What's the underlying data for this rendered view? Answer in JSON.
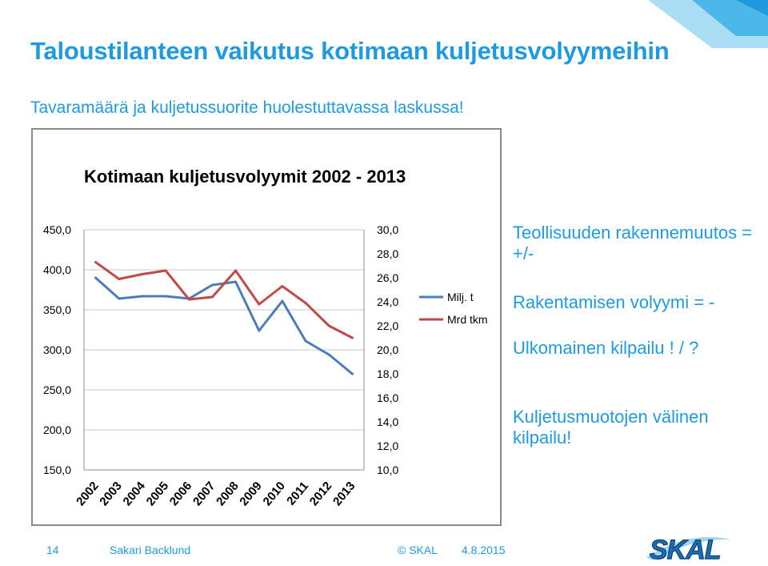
{
  "slide": {
    "title": "Taloustilanteen vaikutus kotimaan kuljetusvolyymeihin",
    "subtitle": "Tavaramäärä ja kuljetussuorite huolestuttavassa laskussa!",
    "accent_color": "#1e9be0"
  },
  "bullets": [
    "Teollisuuden rakennemuutos = +/-",
    "Rakentamisen volyymi = -",
    "Ulkomainen kilpailu ! / ?",
    "Kuljetusmuotojen välinen kilpailu!"
  ],
  "footer": {
    "page_number": "14",
    "author": "Sakari Backlund",
    "copyright": "© SKAL",
    "date": "4.8.2015"
  },
  "logo": {
    "text": "SKAL",
    "icon": "skal-logo"
  },
  "chart_data": {
    "type": "line",
    "title": "Kotimaan kuljetusvolyymit 2002 - 2013",
    "categories": [
      "2002",
      "2003",
      "2004",
      "2005",
      "2006",
      "2007",
      "2008",
      "2009",
      "2010",
      "2011",
      "2012",
      "2013"
    ],
    "series": [
      {
        "name": "Milj. t",
        "axis": "left",
        "color": "#4a7ebb",
        "values": [
          390,
          364,
          367,
          367,
          364,
          381,
          385,
          324,
          361,
          311,
          294,
          270
        ]
      },
      {
        "name": "Mrd tkm",
        "axis": "right",
        "color": "#be4b48",
        "values": [
          27.3,
          25.9,
          26.3,
          26.6,
          24.2,
          24.4,
          26.6,
          23.8,
          25.3,
          23.9,
          22.0,
          21.0
        ]
      }
    ],
    "y_left": {
      "min": 150,
      "max": 450,
      "ticks": [
        "150,0",
        "200,0",
        "250,0",
        "300,0",
        "350,0",
        "400,0",
        "450,0"
      ]
    },
    "y_right": {
      "min": 10,
      "max": 30,
      "ticks": [
        "10,0",
        "12,0",
        "14,0",
        "16,0",
        "18,0",
        "20,0",
        "22,0",
        "24,0",
        "26,0",
        "28,0",
        "30,0"
      ]
    },
    "grid": true,
    "legend_position": "right"
  }
}
